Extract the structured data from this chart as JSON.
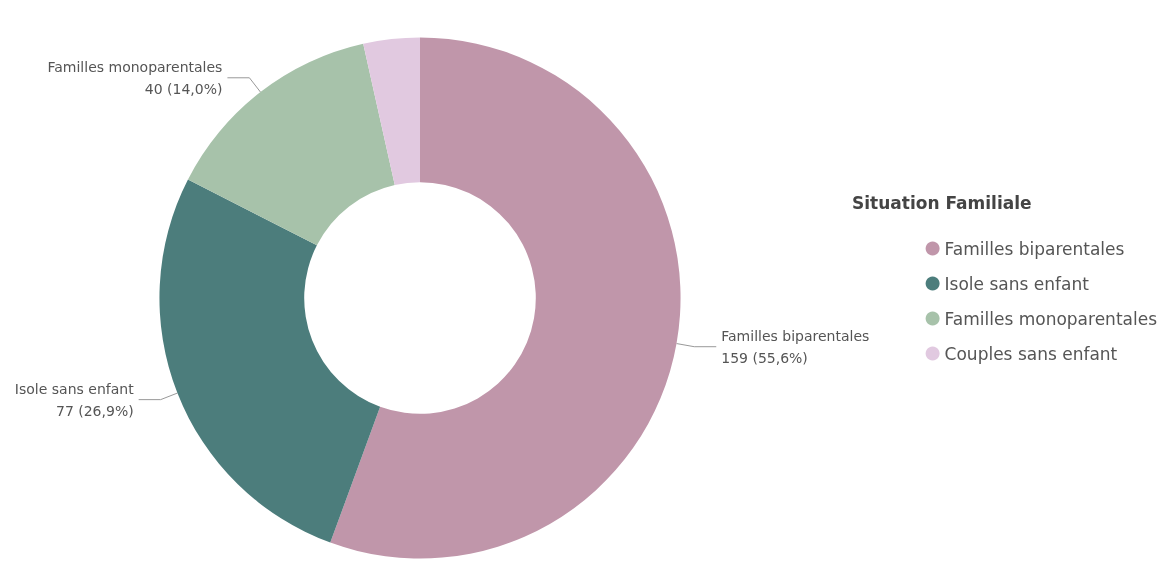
{
  "chart_data": {
    "type": "donut",
    "legend_title": "Situation Familiale",
    "categories": [
      "Familles biparentales",
      "Isole sans enfant",
      "Familles monoparentales",
      "Couples sans enfant"
    ],
    "values": [
      159,
      77,
      40,
      10
    ],
    "value_labels": [
      "159 (55,6%)",
      "77 (26,9%)",
      "40 (14,0%)",
      null
    ],
    "colors": [
      "#c096aa",
      "#4c7d7c",
      "#a7c2aa",
      "#e1c9e0"
    ],
    "legend": "right"
  }
}
